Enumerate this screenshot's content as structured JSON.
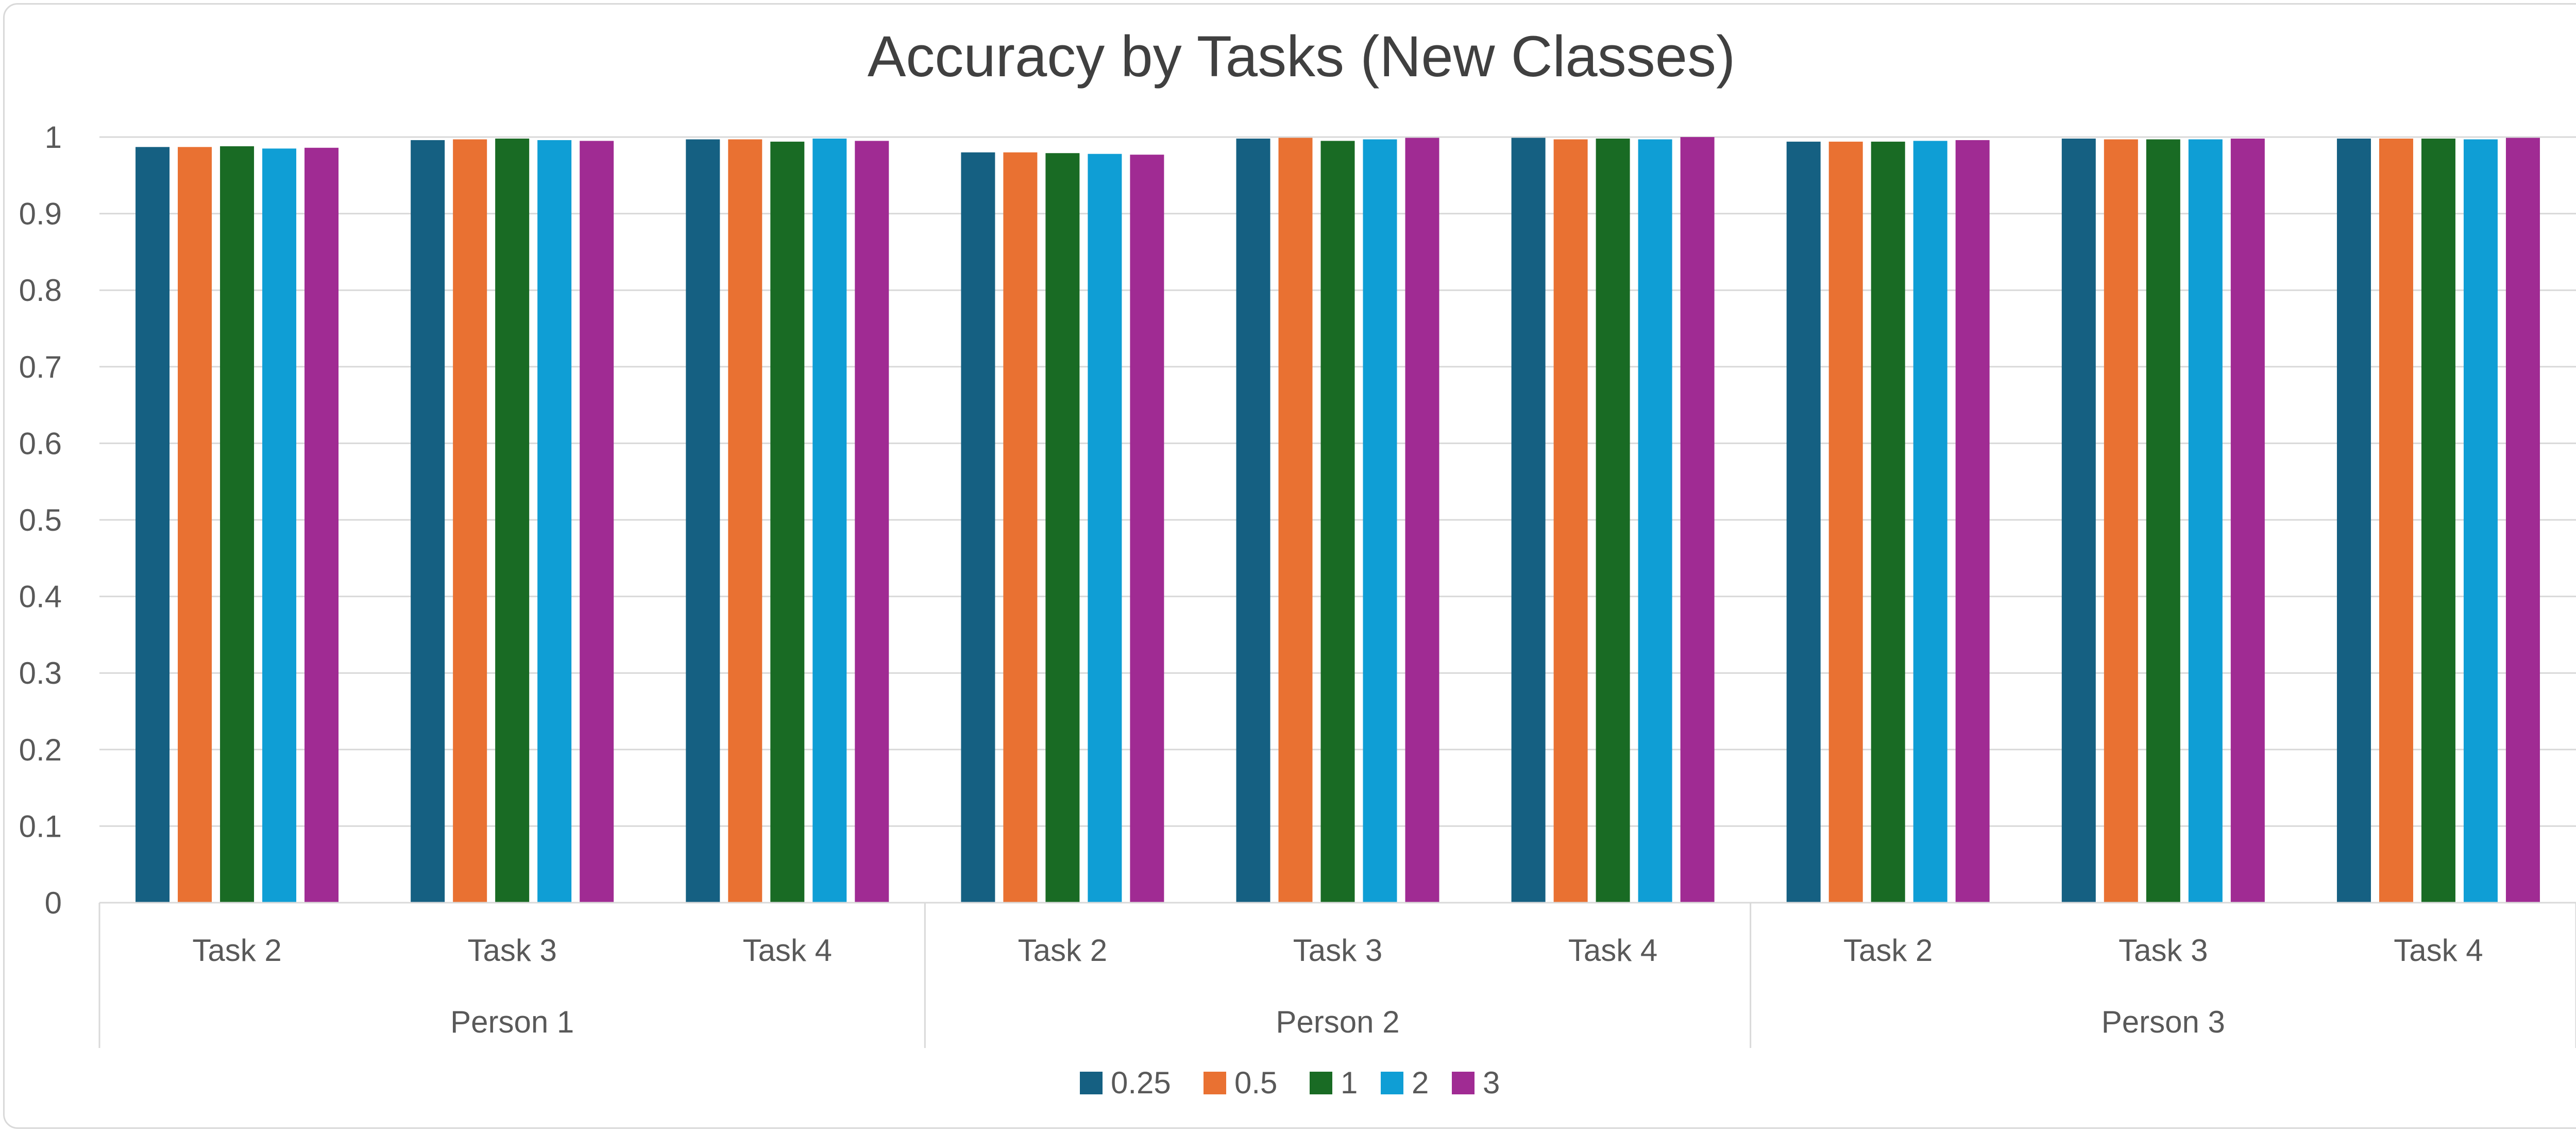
{
  "chart_data": {
    "type": "bar",
    "title": "Accuracy by Tasks (New Classes)",
    "xlabel": "",
    "ylabel": "",
    "ylim": [
      0,
      1
    ],
    "yticks": [
      "0",
      "0.1",
      "0.2",
      "0.3",
      "0.4",
      "0.5",
      "0.6",
      "0.7",
      "0.8",
      "0.9",
      "1"
    ],
    "grid": true,
    "legend_position": "bottom",
    "groups": [
      {
        "label": "Person 1",
        "categories": [
          "Task 2",
          "Task 3",
          "Task 4"
        ]
      },
      {
        "label": "Person 2",
        "categories": [
          "Task 2",
          "Task 3",
          "Task 4"
        ]
      },
      {
        "label": "Person 3",
        "categories": [
          "Task 2",
          "Task 3",
          "Task 4"
        ]
      }
    ],
    "series": [
      {
        "name": "0.25",
        "color": "#156082",
        "values": [
          0.987,
          0.996,
          0.997,
          0.98,
          0.998,
          0.999,
          0.994,
          0.998,
          0.998
        ]
      },
      {
        "name": "0.5",
        "color": "#E97132",
        "values": [
          0.987,
          0.997,
          0.997,
          0.98,
          0.999,
          0.997,
          0.994,
          0.997,
          0.998
        ]
      },
      {
        "name": "1",
        "color": "#196B24",
        "values": [
          0.988,
          0.998,
          0.994,
          0.979,
          0.995,
          0.998,
          0.994,
          0.997,
          0.998
        ]
      },
      {
        "name": "2",
        "color": "#0F9ED5",
        "values": [
          0.985,
          0.996,
          0.998,
          0.978,
          0.997,
          0.997,
          0.995,
          0.997,
          0.997
        ]
      },
      {
        "name": "3",
        "color": "#A02B93",
        "values": [
          0.986,
          0.995,
          0.995,
          0.977,
          0.999,
          1.0,
          0.996,
          0.998,
          0.999
        ]
      }
    ]
  }
}
